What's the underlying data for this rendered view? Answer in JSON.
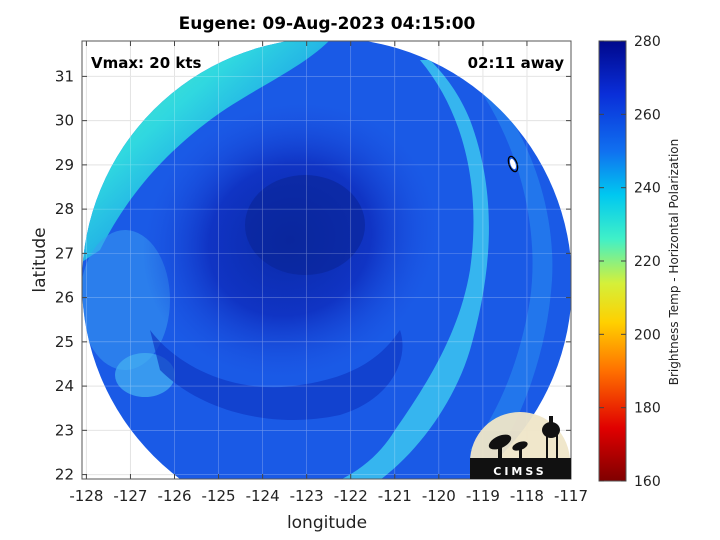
{
  "chart_data": {
    "type": "heatmap",
    "title": "Eugene: 09-Aug-2023 04:15:00",
    "xlabel": "longitude",
    "ylabel": "latitude",
    "xlim": [
      -128.1,
      -117
    ],
    "ylim": [
      21.9,
      31.8
    ],
    "xticks": [
      -128,
      -127,
      -126,
      -125,
      -124,
      -123,
      -122,
      -121,
      -120,
      -119,
      -118,
      -117
    ],
    "yticks": [
      22,
      23,
      24,
      25,
      26,
      27,
      28,
      29,
      30,
      31
    ],
    "grid": true,
    "annotations": {
      "vmax": "Vmax: 20 kts",
      "away": "02:11 away"
    },
    "center": {
      "lon": -122.8,
      "lat": 27.1
    },
    "colorbar": {
      "label": "Brightness Temp - Horizontal Polarization",
      "range": [
        160,
        280
      ],
      "ticks": [
        160,
        180,
        200,
        220,
        240,
        260,
        280
      ]
    },
    "logo": "CIMSS"
  }
}
